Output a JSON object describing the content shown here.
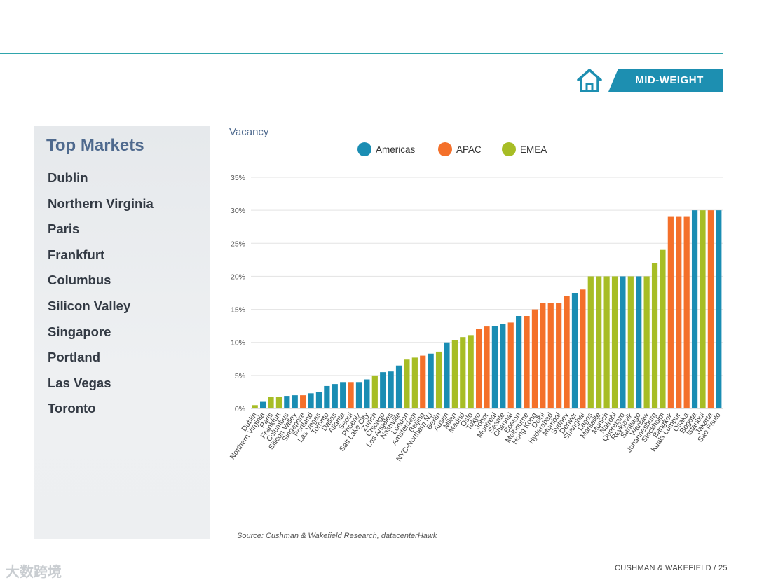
{
  "header": {
    "badge_label": "MID-WEIGHT",
    "icon": "house-icon"
  },
  "panel": {
    "title": "Top Markets",
    "markets": [
      "Dublin",
      "Northern Virginia",
      "Paris",
      "Frankfurt",
      "Columbus",
      "Silicon Valley",
      "Singapore",
      "Portland",
      "Las Vegas",
      "Toronto"
    ]
  },
  "colors": {
    "Americas": "#1a8db3",
    "APAC": "#f4702a",
    "EMEA": "#a7bd25",
    "accent": "#1d8fb1"
  },
  "chart_data": {
    "type": "bar",
    "title": "Vacancy",
    "ylabel": "",
    "xlabel": "",
    "ylim": [
      0,
      35
    ],
    "yticks": [
      0,
      5,
      10,
      15,
      20,
      25,
      30,
      35
    ],
    "ytick_labels": [
      "0%",
      "5%",
      "10%",
      "15%",
      "20%",
      "25%",
      "30%",
      "35%"
    ],
    "grid": true,
    "legend": [
      "Americas",
      "APAC",
      "EMEA"
    ],
    "legend_position": "top-center",
    "categories": [
      "Dublin",
      "Northern Virginia",
      "Paris",
      "Frankfurt",
      "Columbus",
      "Silicon Valley",
      "Singapore",
      "Portland",
      "Las Vegas",
      "Toronto",
      "Dallas",
      "Atlanta",
      "Seoul",
      "Phoenix",
      "Salt Lake City",
      "Zurich",
      "Chicago",
      "Los Angeles",
      "Nashville",
      "London",
      "Amsterdam",
      "Beijing",
      "NYC-Northern NJ",
      "Berlin",
      "Austin",
      "Milan",
      "Madrid",
      "Oslo",
      "Tokyo",
      "Johor",
      "Montreal",
      "Seattle",
      "Chennai",
      "Boston",
      "Melbourne",
      "Hong Kong",
      "Delhi",
      "Hyderabad",
      "Mumbai",
      "Sydney",
      "Denver",
      "Shanghai",
      "Lagos",
      "Marseille",
      "Munich",
      "Nairobi",
      "Queretaro",
      "Reykjavik",
      "Santiago",
      "Warsaw",
      "Johannesburg",
      "Stockholm",
      "Bangkok",
      "Kuala Lumpur",
      "Osaka",
      "Bogota",
      "Istanbul",
      "Jakarta",
      "Sao Paulo"
    ],
    "values": [
      0.5,
      1.0,
      1.7,
      1.8,
      1.9,
      2.0,
      2.0,
      2.3,
      2.5,
      3.4,
      3.7,
      4.0,
      4.0,
      4.0,
      4.4,
      5.0,
      5.5,
      5.6,
      6.5,
      7.4,
      7.7,
      8.0,
      8.3,
      8.6,
      10.0,
      10.3,
      10.8,
      11.1,
      12.0,
      12.4,
      12.5,
      12.8,
      13.0,
      14.0,
      14.0,
      15.0,
      16.0,
      16.0,
      16.0,
      17.0,
      17.5,
      18.0,
      20.0,
      20.0,
      20.0,
      20.0,
      20.0,
      20.0,
      20.0,
      20.0,
      22.0,
      24.0,
      29.0,
      29.0,
      29.0,
      30.0,
      30.0,
      30.0,
      30.0
    ],
    "regions": [
      "EMEA",
      "Americas",
      "EMEA",
      "EMEA",
      "Americas",
      "Americas",
      "APAC",
      "Americas",
      "Americas",
      "Americas",
      "Americas",
      "Americas",
      "APAC",
      "Americas",
      "Americas",
      "EMEA",
      "Americas",
      "Americas",
      "Americas",
      "EMEA",
      "EMEA",
      "APAC",
      "Americas",
      "EMEA",
      "Americas",
      "EMEA",
      "EMEA",
      "EMEA",
      "APAC",
      "APAC",
      "Americas",
      "Americas",
      "APAC",
      "Americas",
      "APAC",
      "APAC",
      "APAC",
      "APAC",
      "APAC",
      "APAC",
      "Americas",
      "APAC",
      "EMEA",
      "EMEA",
      "EMEA",
      "EMEA",
      "Americas",
      "EMEA",
      "Americas",
      "EMEA",
      "EMEA",
      "EMEA",
      "APAC",
      "APAC",
      "APAC",
      "Americas",
      "EMEA",
      "APAC",
      "Americas"
    ]
  },
  "footer": {
    "source": "Source: Cushman & Wakefield Research, datacenterHawk",
    "page": "CUSHMAN & WAKEFIELD / 25",
    "watermark": "大数跨境"
  }
}
